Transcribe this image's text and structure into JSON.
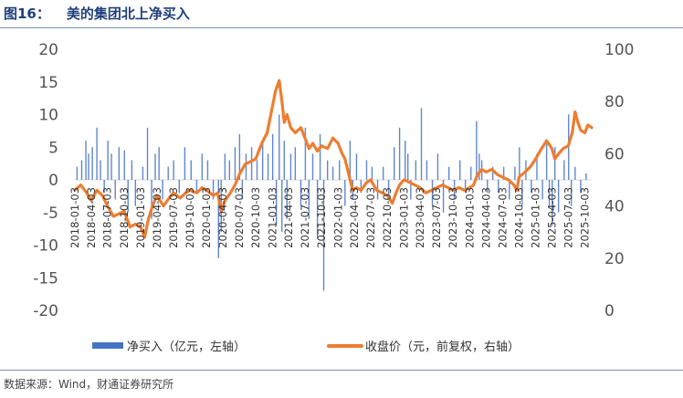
{
  "figure": {
    "number": "图16：",
    "title": "美的集团北上净买入",
    "source": "数据来源：Wind，财通证券研究所"
  },
  "colors": {
    "bars": "#4472c4",
    "line": "#ed7d31",
    "title": "#1f3f7a",
    "rule": "#7d93b8"
  },
  "chart_data": {
    "type": "bar+line",
    "x_tick_labels": [
      "2018-01-03",
      "2018-04-03",
      "2018-07-03",
      "2018-10-03",
      "2019-01-03",
      "2019-04-03",
      "2019-07-03",
      "2019-10-03",
      "2020-01-03",
      "2020-04-03",
      "2020-07-03",
      "2020-10-03",
      "2021-01-03",
      "2021-04-03",
      "2021-07-03",
      "2021-10-03",
      "2022-01-03",
      "2022-04-03",
      "2022-07-03",
      "2022-10-03",
      "2023-01-03",
      "2023-04-03",
      "2023-07-03",
      "2023-10-03",
      "2024-01-03",
      "2024-04-03",
      "2024-07-03",
      "2024-10-03",
      "2025-01-03",
      "2025-04-03",
      "2025-07-03",
      "2025-10-03"
    ],
    "x_start": "2018-01-03",
    "x_end": "2025-11-10",
    "left_axis": {
      "ylim": [
        -20,
        20
      ],
      "ticks": [
        "20",
        "15",
        "10",
        "5",
        "0",
        "-5",
        "-10",
        "-15",
        "-20"
      ],
      "tick_values": [
        20,
        15,
        10,
        5,
        0,
        -5,
        -10,
        -15,
        -20
      ]
    },
    "right_axis": {
      "ylim": [
        0,
        100
      ],
      "ticks": [
        "100",
        "80",
        "60",
        "40",
        "20",
        "0"
      ],
      "tick_values": [
        100,
        80,
        60,
        40,
        20,
        0
      ]
    },
    "series": [
      {
        "name": "净买入（亿元，左轴）",
        "type": "bar",
        "axis": "left",
        "points": [
          [
            "2018-01-15",
            2
          ],
          [
            "2018-02-10",
            3
          ],
          [
            "2018-03-05",
            6
          ],
          [
            "2018-03-20",
            4
          ],
          [
            "2018-04-10",
            5
          ],
          [
            "2018-05-05",
            8
          ],
          [
            "2018-05-25",
            3
          ],
          [
            "2018-06-15",
            -2
          ],
          [
            "2018-07-05",
            6
          ],
          [
            "2018-07-25",
            4
          ],
          [
            "2018-08-15",
            -3
          ],
          [
            "2018-09-05",
            5
          ],
          [
            "2018-10-05",
            4.5
          ],
          [
            "2018-10-25",
            -5
          ],
          [
            "2018-11-15",
            3
          ],
          [
            "2018-12-05",
            -4
          ],
          [
            "2019-01-15",
            2
          ],
          [
            "2019-02-10",
            8
          ],
          [
            "2019-03-05",
            -6
          ],
          [
            "2019-03-25",
            4
          ],
          [
            "2019-04-15",
            5
          ],
          [
            "2019-05-05",
            -3
          ],
          [
            "2019-06-05",
            2
          ],
          [
            "2019-07-05",
            3
          ],
          [
            "2019-08-05",
            -2
          ],
          [
            "2019-09-05",
            5
          ],
          [
            "2019-10-10",
            3
          ],
          [
            "2019-11-10",
            -2
          ],
          [
            "2019-12-10",
            4
          ],
          [
            "2020-01-10",
            3
          ],
          [
            "2020-02-10",
            -3
          ],
          [
            "2020-03-10",
            -12
          ],
          [
            "2020-03-25",
            -8
          ],
          [
            "2020-04-15",
            4
          ],
          [
            "2020-05-10",
            3
          ],
          [
            "2020-06-10",
            5
          ],
          [
            "2020-07-05",
            7
          ],
          [
            "2020-07-20",
            -3
          ],
          [
            "2020-08-10",
            4
          ],
          [
            "2020-09-10",
            5
          ],
          [
            "2020-10-10",
            3
          ],
          [
            "2020-11-10",
            6
          ],
          [
            "2020-12-10",
            4
          ],
          [
            "2021-01-05",
            7
          ],
          [
            "2021-01-25",
            -7
          ],
          [
            "2021-02-10",
            10
          ],
          [
            "2021-02-25",
            -8
          ],
          [
            "2021-03-10",
            6
          ],
          [
            "2021-03-25",
            -6
          ],
          [
            "2021-04-15",
            4
          ],
          [
            "2021-05-10",
            5
          ],
          [
            "2021-06-10",
            -4
          ],
          [
            "2021-07-05",
            8
          ],
          [
            "2021-07-25",
            -6
          ],
          [
            "2021-08-15",
            4
          ],
          [
            "2021-09-10",
            -9
          ],
          [
            "2021-09-25",
            7
          ],
          [
            "2021-10-15",
            -17
          ],
          [
            "2021-11-05",
            3
          ],
          [
            "2021-12-05",
            2
          ],
          [
            "2022-01-10",
            3
          ],
          [
            "2022-02-10",
            -4
          ],
          [
            "2022-03-10",
            6
          ],
          [
            "2022-03-25",
            -3
          ],
          [
            "2022-04-15",
            4
          ],
          [
            "2022-05-10",
            -2
          ],
          [
            "2022-06-10",
            3
          ],
          [
            "2022-07-10",
            2
          ],
          [
            "2022-08-10",
            -3
          ],
          [
            "2022-09-10",
            2
          ],
          [
            "2022-10-10",
            -3
          ],
          [
            "2022-11-10",
            5
          ],
          [
            "2022-12-10",
            8
          ],
          [
            "2023-01-10",
            6
          ],
          [
            "2023-01-25",
            4
          ],
          [
            "2023-02-10",
            -3
          ],
          [
            "2023-03-10",
            3
          ],
          [
            "2023-04-10",
            11
          ],
          [
            "2023-05-10",
            3
          ],
          [
            "2023-06-10",
            -4
          ],
          [
            "2023-07-10",
            4
          ],
          [
            "2023-08-10",
            -5
          ],
          [
            "2023-09-10",
            2
          ],
          [
            "2023-10-10",
            -3
          ],
          [
            "2023-11-10",
            3
          ],
          [
            "2023-12-10",
            -2
          ],
          [
            "2024-01-10",
            2
          ],
          [
            "2024-02-10",
            9
          ],
          [
            "2024-02-25",
            4
          ],
          [
            "2024-03-10",
            3
          ],
          [
            "2024-04-10",
            -2
          ],
          [
            "2024-05-10",
            2
          ],
          [
            "2024-06-10",
            -2
          ],
          [
            "2024-07-10",
            2
          ],
          [
            "2024-08-10",
            -3
          ],
          [
            "2024-09-10",
            2
          ],
          [
            "2024-10-05",
            5
          ],
          [
            "2024-10-20",
            -4
          ],
          [
            "2024-11-10",
            3
          ],
          [
            "2024-12-10",
            -2
          ],
          [
            "2025-01-10",
            4
          ],
          [
            "2025-02-10",
            -3
          ],
          [
            "2025-03-05",
            6
          ],
          [
            "2025-03-20",
            -4
          ],
          [
            "2025-04-05",
            -7
          ],
          [
            "2025-04-20",
            5
          ],
          [
            "2025-05-10",
            -5
          ],
          [
            "2025-06-10",
            3
          ],
          [
            "2025-07-05",
            10
          ],
          [
            "2025-07-20",
            -4
          ],
          [
            "2025-08-10",
            2
          ],
          [
            "2025-09-10",
            -2
          ],
          [
            "2025-10-10",
            1
          ]
        ]
      },
      {
        "name": "收盘价（元，前复权，右轴）",
        "type": "line",
        "axis": "right",
        "points": [
          [
            "2018-01-03",
            46
          ],
          [
            "2018-02-05",
            48
          ],
          [
            "2018-03-10",
            45
          ],
          [
            "2018-04-03",
            42
          ],
          [
            "2018-05-05",
            46
          ],
          [
            "2018-06-05",
            44
          ],
          [
            "2018-07-03",
            40
          ],
          [
            "2018-08-05",
            36
          ],
          [
            "2018-09-05",
            37
          ],
          [
            "2018-10-03",
            38
          ],
          [
            "2018-11-05",
            32
          ],
          [
            "2018-12-05",
            33
          ],
          [
            "2019-01-03",
            32
          ],
          [
            "2019-01-25",
            28
          ],
          [
            "2019-02-15",
            35
          ],
          [
            "2019-03-10",
            40
          ],
          [
            "2019-04-03",
            44
          ],
          [
            "2019-05-10",
            40
          ],
          [
            "2019-06-10",
            43
          ],
          [
            "2019-07-03",
            45
          ],
          [
            "2019-08-10",
            43
          ],
          [
            "2019-09-10",
            45
          ],
          [
            "2019-10-03",
            46
          ],
          [
            "2019-11-10",
            45
          ],
          [
            "2019-12-10",
            47
          ],
          [
            "2020-01-03",
            46
          ],
          [
            "2020-02-10",
            44
          ],
          [
            "2020-03-05",
            45
          ],
          [
            "2020-03-25",
            38
          ],
          [
            "2020-04-15",
            42
          ],
          [
            "2020-05-15",
            45
          ],
          [
            "2020-06-10",
            48
          ],
          [
            "2020-07-03",
            52
          ],
          [
            "2020-08-05",
            56
          ],
          [
            "2020-09-05",
            57
          ],
          [
            "2020-10-03",
            58
          ],
          [
            "2020-11-05",
            64
          ],
          [
            "2020-12-05",
            68
          ],
          [
            "2021-01-03",
            78
          ],
          [
            "2021-01-20",
            84
          ],
          [
            "2021-02-10",
            88
          ],
          [
            "2021-02-25",
            80
          ],
          [
            "2021-03-10",
            72
          ],
          [
            "2021-03-25",
            75
          ],
          [
            "2021-04-15",
            70
          ],
          [
            "2021-05-10",
            68
          ],
          [
            "2021-06-10",
            70
          ],
          [
            "2021-07-03",
            66
          ],
          [
            "2021-07-25",
            62
          ],
          [
            "2021-08-15",
            64
          ],
          [
            "2021-09-10",
            61
          ],
          [
            "2021-10-03",
            63
          ],
          [
            "2021-11-05",
            62
          ],
          [
            "2021-12-05",
            66
          ],
          [
            "2022-01-03",
            64
          ],
          [
            "2022-01-25",
            60
          ],
          [
            "2022-02-10",
            58
          ],
          [
            "2022-03-10",
            50
          ],
          [
            "2022-03-25",
            46
          ],
          [
            "2022-04-15",
            47
          ],
          [
            "2022-05-10",
            46
          ],
          [
            "2022-06-10",
            49
          ],
          [
            "2022-07-03",
            50
          ],
          [
            "2022-08-05",
            46
          ],
          [
            "2022-09-05",
            45
          ],
          [
            "2022-10-03",
            44
          ],
          [
            "2022-10-31",
            41
          ],
          [
            "2022-11-20",
            45
          ],
          [
            "2022-12-10",
            48
          ],
          [
            "2023-01-03",
            50
          ],
          [
            "2023-02-05",
            49
          ],
          [
            "2023-03-05",
            48
          ],
          [
            "2023-04-03",
            47
          ],
          [
            "2023-05-05",
            45
          ],
          [
            "2023-06-05",
            46
          ],
          [
            "2023-07-03",
            47
          ],
          [
            "2023-08-05",
            48
          ],
          [
            "2023-09-05",
            47
          ],
          [
            "2023-10-03",
            46
          ],
          [
            "2023-11-05",
            47
          ],
          [
            "2023-12-05",
            46
          ],
          [
            "2024-01-03",
            47
          ],
          [
            "2024-01-25",
            48
          ],
          [
            "2024-02-15",
            52
          ],
          [
            "2024-03-10",
            54
          ],
          [
            "2024-04-03",
            53
          ],
          [
            "2024-05-05",
            54
          ],
          [
            "2024-06-05",
            52
          ],
          [
            "2024-07-03",
            51
          ],
          [
            "2024-08-05",
            50
          ],
          [
            "2024-09-05",
            48
          ],
          [
            "2024-09-20",
            46
          ],
          [
            "2024-10-03",
            51
          ],
          [
            "2024-11-05",
            53
          ],
          [
            "2024-12-05",
            55
          ],
          [
            "2025-01-03",
            58
          ],
          [
            "2025-02-05",
            62
          ],
          [
            "2025-03-05",
            65
          ],
          [
            "2025-04-03",
            62
          ],
          [
            "2025-04-20",
            58
          ],
          [
            "2025-05-10",
            60
          ],
          [
            "2025-06-05",
            62
          ],
          [
            "2025-07-03",
            63
          ],
          [
            "2025-07-25",
            68
          ],
          [
            "2025-08-10",
            76
          ],
          [
            "2025-08-25",
            72
          ],
          [
            "2025-09-10",
            69
          ],
          [
            "2025-10-03",
            68
          ],
          [
            "2025-10-20",
            71
          ],
          [
            "2025-11-10",
            70
          ]
        ]
      }
    ]
  }
}
